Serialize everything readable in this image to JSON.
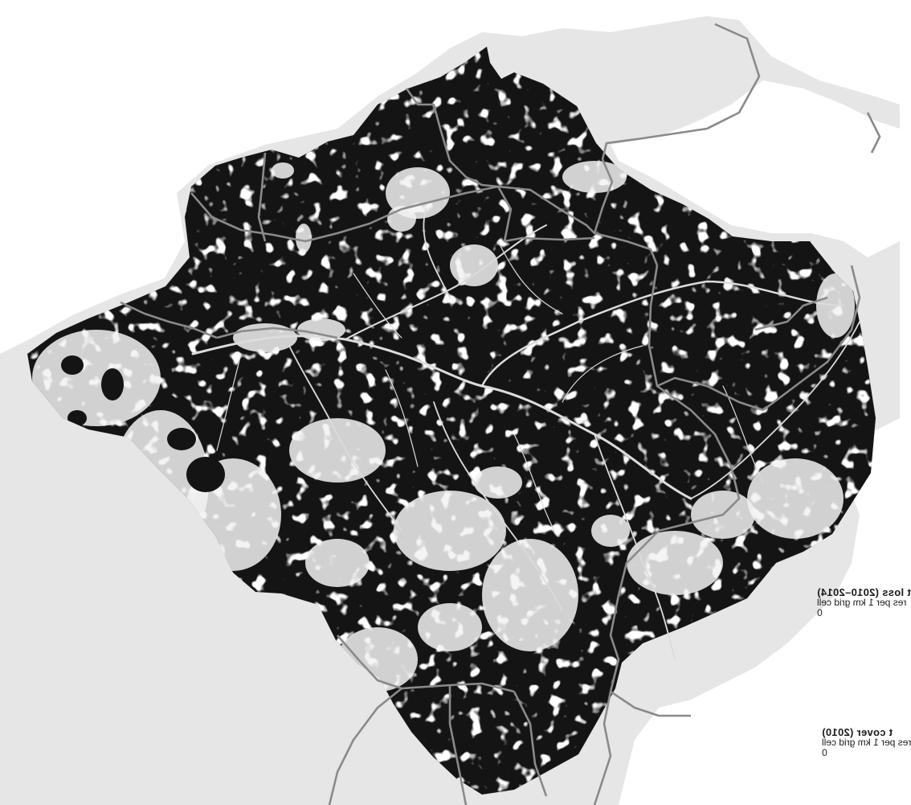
{
  "map": {
    "colors": {
      "background": "#ffffff",
      "land": "#e6e6e6",
      "forest": "#141414",
      "cleared": "#f2f2f2",
      "rivers": "#dcdcdc",
      "borders": "#8a8a8a"
    }
  },
  "legend": {
    "loss": {
      "title": "t loss (2010–2014)",
      "units": "res per 1 km grid cell",
      "tick": "0"
    },
    "cover": {
      "title": "t cover (2010)",
      "units": "res per 1 km grid cell",
      "tick": "0"
    }
  }
}
